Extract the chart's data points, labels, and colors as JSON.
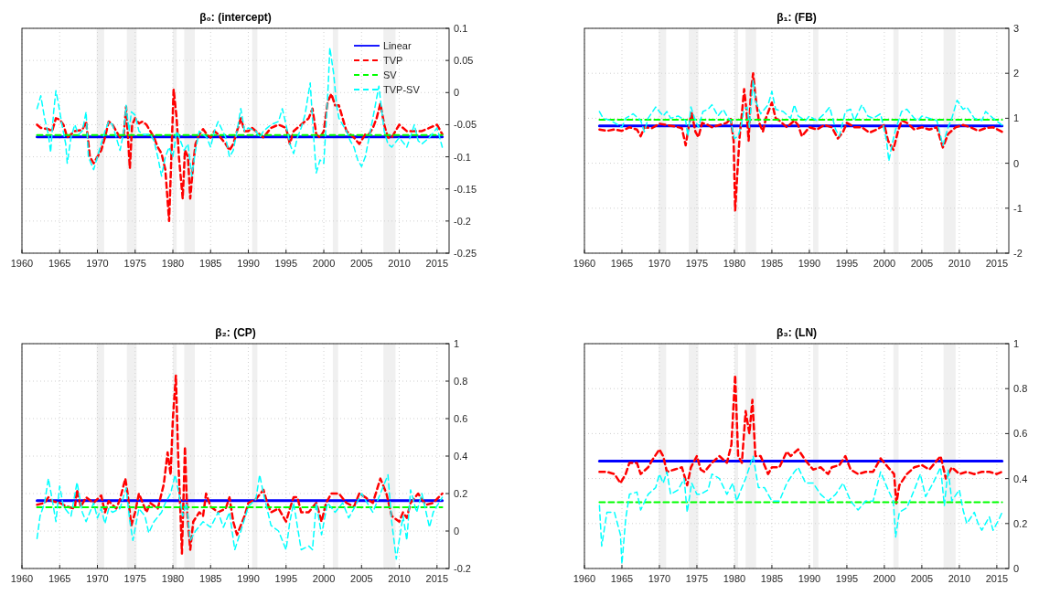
{
  "chart_data": [
    {
      "type": "line",
      "title": "β₀: (intercept)",
      "xlim": [
        1960,
        2016.6
      ],
      "xticks": [
        1960,
        1965,
        1970,
        1975,
        1980,
        1985,
        1990,
        1995,
        2000,
        2005,
        2010,
        2015
      ],
      "ylim": [
        -0.25,
        0.1
      ],
      "yticks": [
        -0.25,
        -0.2,
        -0.15,
        -0.1,
        -0.05,
        0,
        0.05,
        0.1
      ],
      "grid": true,
      "legend": "top right",
      "bands": [
        {
          "axis": "x",
          "from": 1969.9,
          "to": 1970.9,
          "color": "#f0f0f0"
        },
        {
          "axis": "x",
          "from": 1973.9,
          "to": 1975.2,
          "color": "#f0f0f0"
        },
        {
          "axis": "x",
          "from": 1980,
          "to": 1980.5,
          "color": "#f0f0f0"
        },
        {
          "axis": "x",
          "from": 1981.5,
          "to": 1982.9,
          "color": "#f0f0f0"
        },
        {
          "axis": "x",
          "from": 1990.5,
          "to": 1991.2,
          "color": "#f0f0f0"
        },
        {
          "axis": "x",
          "from": 2001.2,
          "to": 2001.9,
          "color": "#f0f0f0"
        },
        {
          "axis": "x",
          "from": 2007.9,
          "to": 2009.5,
          "color": "#f0f0f0"
        }
      ],
      "series": [
        {
          "name": "Linear",
          "color": "#0000ff",
          "line_style": "solid",
          "x": [
            1962,
            2015.7
          ],
          "values": [
            -0.069,
            -0.069
          ]
        },
        {
          "name": "TVP",
          "color": "#ff0000",
          "line_style": "dashed",
          "x": [
            1962,
            1962.5,
            1963.5,
            1964,
            1964.5,
            1965,
            1965.5,
            1966,
            1966.5,
            1967,
            1968,
            1968.5,
            1969,
            1969.5,
            1970.5,
            1971,
            1971.5,
            1972,
            1972.5,
            1973,
            1973.5,
            1973.8,
            1974,
            1974.3,
            1974.6,
            1975,
            1975.5,
            1976,
            1976.5,
            1977,
            1977.5,
            1978,
            1978.5,
            1979,
            1979.5,
            1979.8,
            1980.1,
            1980.5,
            1980.8,
            1981.3,
            1981.6,
            1982,
            1982.3,
            1982.7,
            1983,
            1983.5,
            1984,
            1984.5,
            1985,
            1985.5,
            1986,
            1987,
            1987.5,
            1988,
            1988.5,
            1989,
            1989.5,
            1990,
            1990.5,
            1991,
            1992,
            1993,
            1994,
            1995,
            1995.5,
            1996,
            1997,
            1998,
            1998.5,
            1999,
            1999.5,
            2000,
            2000.5,
            2001,
            2001.5,
            2002,
            2002.5,
            2003,
            2004,
            2004.7,
            2005.5,
            2006,
            2006.5,
            2007,
            2007.5,
            2008,
            2008.5,
            2009,
            2010,
            2011,
            2012,
            2013,
            2014,
            2015,
            2015.7
          ],
          "values": [
            -0.05,
            -0.055,
            -0.057,
            -0.06,
            -0.04,
            -0.042,
            -0.05,
            -0.07,
            -0.065,
            -0.06,
            -0.058,
            -0.045,
            -0.1,
            -0.11,
            -0.09,
            -0.07,
            -0.045,
            -0.05,
            -0.06,
            -0.07,
            -0.065,
            -0.022,
            -0.06,
            -0.118,
            -0.05,
            -0.04,
            -0.048,
            -0.045,
            -0.05,
            -0.06,
            -0.07,
            -0.085,
            -0.095,
            -0.12,
            -0.2,
            -0.1,
            0.005,
            -0.04,
            -0.1,
            -0.165,
            -0.09,
            -0.1,
            -0.165,
            -0.11,
            -0.08,
            -0.065,
            -0.057,
            -0.065,
            -0.07,
            -0.06,
            -0.065,
            -0.08,
            -0.09,
            -0.08,
            -0.06,
            -0.04,
            -0.06,
            -0.06,
            -0.055,
            -0.06,
            -0.07,
            -0.055,
            -0.05,
            -0.055,
            -0.08,
            -0.06,
            -0.05,
            -0.04,
            -0.025,
            -0.065,
            -0.07,
            -0.06,
            -0.015,
            -0.002,
            -0.02,
            -0.02,
            -0.04,
            -0.06,
            -0.07,
            -0.08,
            -0.065,
            -0.065,
            -0.055,
            -0.04,
            -0.017,
            -0.05,
            -0.07,
            -0.07,
            -0.05,
            -0.06,
            -0.06,
            -0.06,
            -0.055,
            -0.05,
            -0.065
          ]
        },
        {
          "name": "SV",
          "color": "#00ff00",
          "line_style": "dashed",
          "x": [
            1962,
            2015.7
          ],
          "values": [
            -0.066,
            -0.066
          ]
        },
        {
          "name": "TVP-SV",
          "color": "#00ffff",
          "line_style": "dashed",
          "x": [
            1962,
            1962.5,
            1963,
            1963.5,
            1963.8,
            1964.2,
            1964.5,
            1964.8,
            1965.3,
            1965.8,
            1966,
            1966.5,
            1967,
            1967.5,
            1968,
            1968.5,
            1968.8,
            1969.5,
            1970,
            1970.5,
            1971,
            1971.5,
            1972,
            1973,
            1973.5,
            1973.8,
            1974.2,
            1974.5,
            1975,
            1975.5,
            1976,
            1977,
            1977.5,
            1978,
            1978.5,
            1979,
            1979.5,
            1980,
            1980.5,
            1981,
            1981.5,
            1982,
            1982.5,
            1983,
            1983.5,
            1984,
            1984.5,
            1985,
            1985.5,
            1986,
            1987,
            1987.5,
            1988,
            1988.5,
            1989,
            1989.5,
            1990,
            1991,
            1991.5,
            1992,
            1993,
            1994,
            1994.5,
            1995,
            1995.5,
            1996,
            1996.5,
            1997,
            1997.5,
            1998.2,
            1998.6,
            1999,
            1999.5,
            2000,
            2000.3,
            2000.6,
            2000.8,
            2001.3,
            2001.7,
            2002,
            2003,
            2003.5,
            2004,
            2004.5,
            2005,
            2005.5,
            2006,
            2006.5,
            2007.3,
            2007.6,
            2008,
            2008.5,
            2009,
            2010,
            2011,
            2012,
            2012.5,
            2013,
            2014,
            2015,
            2015.7
          ],
          "values": [
            -0.025,
            -0.005,
            -0.04,
            -0.065,
            -0.093,
            -0.03,
            0.003,
            -0.015,
            -0.05,
            -0.08,
            -0.11,
            -0.07,
            -0.05,
            -0.065,
            -0.06,
            -0.03,
            -0.1,
            -0.12,
            -0.1,
            -0.08,
            -0.06,
            -0.045,
            -0.05,
            -0.09,
            -0.06,
            -0.02,
            -0.06,
            -0.03,
            -0.035,
            -0.06,
            -0.065,
            -0.065,
            -0.075,
            -0.1,
            -0.13,
            -0.1,
            -0.085,
            -0.1,
            -0.06,
            -0.075,
            -0.09,
            -0.08,
            -0.13,
            -0.09,
            -0.06,
            -0.065,
            -0.07,
            -0.085,
            -0.06,
            -0.045,
            -0.07,
            -0.1,
            -0.09,
            -0.06,
            -0.025,
            -0.06,
            -0.055,
            -0.06,
            -0.07,
            -0.06,
            -0.05,
            -0.045,
            -0.025,
            -0.05,
            -0.08,
            -0.095,
            -0.07,
            -0.055,
            -0.035,
            0.015,
            -0.06,
            -0.125,
            -0.105,
            -0.11,
            -0.05,
            0.015,
            0.07,
            0.03,
            -0.02,
            -0.04,
            -0.06,
            -0.075,
            -0.085,
            -0.105,
            -0.115,
            -0.1,
            -0.07,
            -0.04,
            0.01,
            -0.02,
            -0.06,
            -0.08,
            -0.085,
            -0.07,
            -0.085,
            -0.05,
            -0.075,
            -0.08,
            -0.07,
            -0.055,
            -0.085
          ]
        }
      ]
    },
    {
      "type": "line",
      "title": "β₁: (FB)",
      "xlim": [
        1960,
        2016.6
      ],
      "xticks": [
        1960,
        1965,
        1970,
        1975,
        1980,
        1985,
        1990,
        1995,
        2000,
        2005,
        2010,
        2015
      ],
      "ylim": [
        -2,
        3
      ],
      "yticks": [
        -2,
        -1,
        0,
        1,
        2,
        3
      ],
      "grid": true,
      "bands": [
        {
          "axis": "x",
          "from": 1969.9,
          "to": 1970.9,
          "color": "#f0f0f0"
        },
        {
          "axis": "x",
          "from": 1973.9,
          "to": 1975.2,
          "color": "#f0f0f0"
        },
        {
          "axis": "x",
          "from": 1980,
          "to": 1980.5,
          "color": "#f0f0f0"
        },
        {
          "axis": "x",
          "from": 1981.5,
          "to": 1982.9,
          "color": "#f0f0f0"
        },
        {
          "axis": "x",
          "from": 1990.5,
          "to": 1991.2,
          "color": "#f0f0f0"
        },
        {
          "axis": "x",
          "from": 2001.2,
          "to": 2001.9,
          "color": "#f0f0f0"
        },
        {
          "axis": "x",
          "from": 2007.9,
          "to": 2009.5,
          "color": "#f0f0f0"
        }
      ],
      "series": [
        {
          "color": "#0000ff",
          "line_style": "solid",
          "x": [
            1962,
            2015.7
          ],
          "values": [
            0.83,
            0.83
          ]
        },
        {
          "color": "#ff0000",
          "line_style": "dashed",
          "x": [
            1962,
            1963,
            1964,
            1965,
            1966,
            1967,
            1967.5,
            1968,
            1969,
            1970,
            1971,
            1972,
            1973,
            1973.5,
            1974,
            1974.3,
            1974.8,
            1975.2,
            1975.7,
            1976.5,
            1977,
            1978,
            1979,
            1979.5,
            1979.9,
            1980.1,
            1980.4,
            1980.7,
            1981,
            1981.3,
            1981.6,
            1981.9,
            1982.2,
            1982.5,
            1982.8,
            1983.3,
            1983.8,
            1984.2,
            1985,
            1985.5,
            1986,
            1987,
            1988,
            1988.5,
            1989,
            1990,
            1991,
            1992,
            1993,
            1993.8,
            1994.5,
            1995,
            1996,
            1997,
            1998,
            1999,
            2000,
            2000.5,
            2001.2,
            2001.8,
            2002.3,
            2003,
            2004,
            2005,
            2006,
            2007,
            2007.8,
            2008.5,
            2009.5,
            2010.5,
            2011.5,
            2012.5,
            2013.5,
            2014.5,
            2015.7
          ],
          "values": [
            0.75,
            0.72,
            0.75,
            0.72,
            0.8,
            0.75,
            0.6,
            0.8,
            0.78,
            0.88,
            0.85,
            0.82,
            0.78,
            0.4,
            0.9,
            1.12,
            0.7,
            0.58,
            0.9,
            0.85,
            0.8,
            0.85,
            0.9,
            1.0,
            0.5,
            -1.05,
            -0.2,
            0.6,
            1.1,
            1.65,
            1.2,
            0.5,
            1.6,
            2.0,
            1.5,
            0.9,
            0.7,
            1.0,
            1.35,
            1.0,
            0.95,
            0.8,
            0.95,
            0.85,
            0.6,
            0.8,
            0.75,
            0.85,
            0.8,
            0.55,
            0.7,
            0.9,
            0.8,
            0.8,
            0.68,
            0.75,
            0.85,
            0.5,
            0.3,
            0.7,
            0.95,
            0.9,
            0.75,
            0.8,
            0.75,
            0.8,
            0.35,
            0.65,
            0.8,
            0.85,
            0.8,
            0.72,
            0.78,
            0.8,
            0.7
          ]
        },
        {
          "color": "#00ff00",
          "line_style": "dashed",
          "x": [
            1962,
            2015.7
          ],
          "values": [
            0.97,
            0.97
          ]
        },
        {
          "color": "#00ffff",
          "line_style": "dashed",
          "x": [
            1962,
            1962.5,
            1963.5,
            1964.5,
            1965,
            1965.5,
            1966.5,
            1967.5,
            1968,
            1968.5,
            1969.5,
            1970.5,
            1971,
            1971.5,
            1972.5,
            1973.5,
            1973.8,
            1974.2,
            1974.7,
            1975.2,
            1975.8,
            1976.5,
            1977,
            1977.8,
            1978.5,
            1979,
            1979.5,
            1980,
            1980.5,
            1981,
            1981.3,
            1981.7,
            1982,
            1982.5,
            1982.8,
            1983.5,
            1984.5,
            1985,
            1985.5,
            1986.5,
            1987.5,
            1988,
            1988.5,
            1989.5,
            1990,
            1991,
            1992,
            1992.7,
            1993.5,
            1994,
            1994.8,
            1995.5,
            1996,
            1997,
            1997.8,
            1998.5,
            1999.5,
            2000.3,
            2000.6,
            2001,
            2001.5,
            2002.3,
            2003,
            2004,
            2004.5,
            2005,
            2006,
            2007,
            2007.8,
            2008.5,
            2009,
            2009.7,
            2010.5,
            2011,
            2012,
            2013,
            2013.5,
            2014.5,
            2015.7
          ],
          "values": [
            1.15,
            1.0,
            0.95,
            0.85,
            0.8,
            1.0,
            1.1,
            0.95,
            0.7,
            1.0,
            1.25,
            1.05,
            1.15,
            1.0,
            1.05,
            0.95,
            0.6,
            1.25,
            1.0,
            0.8,
            1.15,
            1.2,
            1.3,
            1.05,
            1.2,
            1.05,
            0.95,
            0.55,
            0.6,
            0.9,
            1.2,
            1.25,
            0.8,
            1.85,
            1.4,
            1.1,
            1.3,
            1.6,
            1.2,
            1.15,
            1.0,
            1.3,
            1.05,
            0.95,
            1.05,
            0.95,
            1.1,
            1.25,
            0.75,
            0.6,
            1.15,
            1.2,
            0.95,
            1.3,
            1.05,
            1.0,
            1.1,
            0.5,
            0.05,
            0.4,
            0.75,
            1.15,
            1.2,
            1.0,
            0.95,
            1.05,
            1.0,
            0.95,
            0.4,
            0.8,
            1.0,
            1.4,
            1.2,
            1.25,
            1.0,
            0.95,
            1.15,
            1.0,
            0.85
          ]
        }
      ]
    },
    {
      "type": "line",
      "title": "β₂: (CP)",
      "xlim": [
        1960,
        2016.6
      ],
      "xticks": [
        1960,
        1965,
        1970,
        1975,
        1980,
        1985,
        1990,
        1995,
        2000,
        2005,
        2010,
        2015
      ],
      "ylim": [
        -0.2,
        1
      ],
      "yticks": [
        -0.2,
        0,
        0.2,
        0.4,
        0.6,
        0.8,
        1
      ],
      "grid": true,
      "bands": [
        {
          "axis": "x",
          "from": 1969.9,
          "to": 1970.9,
          "color": "#f0f0f0"
        },
        {
          "axis": "x",
          "from": 1973.9,
          "to": 1975.2,
          "color": "#f0f0f0"
        },
        {
          "axis": "x",
          "from": 1980,
          "to": 1980.5,
          "color": "#f0f0f0"
        },
        {
          "axis": "x",
          "from": 1981.5,
          "to": 1982.9,
          "color": "#f0f0f0"
        },
        {
          "axis": "x",
          "from": 1990.5,
          "to": 1991.2,
          "color": "#f0f0f0"
        },
        {
          "axis": "x",
          "from": 2001.2,
          "to": 2001.9,
          "color": "#f0f0f0"
        },
        {
          "axis": "x",
          "from": 2007.9,
          "to": 2009.5,
          "color": "#f0f0f0"
        }
      ],
      "series": [
        {
          "color": "#0000ff",
          "line_style": "solid",
          "x": [
            1962,
            2015.7
          ],
          "values": [
            0.162,
            0.162
          ]
        },
        {
          "color": "#ff0000",
          "line_style": "dashed",
          "x": [
            1962,
            1963,
            1963.5,
            1964,
            1965,
            1966,
            1967,
            1967.3,
            1967.8,
            1968.5,
            1969.5,
            1970.5,
            1971,
            1971.5,
            1972.5,
            1973,
            1973.7,
            1974,
            1974.5,
            1975,
            1975.5,
            1976.5,
            1977,
            1978,
            1978.8,
            1979.3,
            1979.7,
            1980,
            1980.4,
            1980.7,
            1981,
            1981.2,
            1981.6,
            1981.9,
            1982.3,
            1982.7,
            1983.5,
            1984,
            1984.4,
            1985,
            1986,
            1987,
            1987.5,
            1988,
            1988.5,
            1989.5,
            1990,
            1991,
            1992,
            1992.5,
            1993,
            1994,
            1995,
            1995.5,
            1996,
            1996.5,
            1997,
            1998,
            1999,
            1999.7,
            2000.3,
            2001,
            2002,
            2003,
            2004,
            2004.7,
            2005.5,
            2006.5,
            2007.5,
            2008.3,
            2009,
            2010,
            2010.5,
            2011,
            2011.5,
            2012.5,
            2013.5,
            2014.5,
            2015.7
          ],
          "values": [
            0.14,
            0.15,
            0.18,
            0.16,
            0.15,
            0.13,
            0.12,
            0.22,
            0.13,
            0.18,
            0.15,
            0.19,
            0.1,
            0.16,
            0.12,
            0.17,
            0.28,
            0.2,
            0.03,
            0.1,
            0.2,
            0.1,
            0.15,
            0.12,
            0.25,
            0.42,
            0.3,
            0.6,
            0.83,
            0.4,
            0.1,
            -0.12,
            0.45,
            0.1,
            -0.1,
            0.05,
            0.1,
            0.08,
            0.2,
            0.13,
            0.1,
            0.12,
            0.18,
            0.05,
            -0.02,
            0.08,
            0.15,
            0.17,
            0.22,
            0.15,
            0.1,
            0.12,
            0.05,
            0.12,
            0.18,
            0.18,
            0.1,
            0.1,
            0.15,
            0.05,
            0.15,
            0.2,
            0.2,
            0.15,
            0.13,
            0.2,
            0.18,
            0.15,
            0.28,
            0.2,
            0.08,
            0.05,
            0.1,
            0.07,
            0.15,
            0.2,
            0.14,
            0.15,
            0.2
          ]
        },
        {
          "color": "#00ff00",
          "line_style": "dashed",
          "x": [
            1962,
            2015.7
          ],
          "values": [
            0.127,
            0.127
          ]
        },
        {
          "color": "#00ffff",
          "line_style": "dashed",
          "x": [
            1962,
            1962.4,
            1963,
            1963.5,
            1964,
            1964.5,
            1965,
            1965.5,
            1966.5,
            1967.3,
            1968,
            1968.5,
            1969.5,
            1970,
            1970.5,
            1971,
            1971.5,
            1972,
            1973,
            1973.8,
            1974.3,
            1974.7,
            1975.5,
            1976.3,
            1976.8,
            1977.5,
            1978.5,
            1979,
            1979.7,
            1980.3,
            1980.8,
            1981.3,
            1981.8,
            1982.3,
            1983,
            1984,
            1985,
            1986,
            1986.7,
            1987.5,
            1988.2,
            1989,
            1990,
            1991,
            1991.5,
            1992,
            1993,
            1994,
            1995,
            1995.5,
            1996,
            1997,
            1998,
            1998.5,
            1999,
            1999.7,
            2000.5,
            2001.5,
            2002.5,
            2003.3,
            2004,
            2005,
            2006.5,
            2007.5,
            2008.5,
            2009,
            2009.6,
            2010.5,
            2011,
            2011.5,
            2012.3,
            2013,
            2014,
            2014.5,
            2015.7
          ],
          "values": [
            -0.04,
            0.08,
            0.15,
            0.28,
            0.17,
            0.05,
            0.24,
            0.13,
            0.08,
            0.26,
            0.1,
            0.05,
            0.15,
            0.07,
            0.12,
            0.04,
            0.12,
            0.1,
            0.12,
            0.23,
            0.05,
            -0.05,
            0.12,
            0.08,
            -0.01,
            0.05,
            0.1,
            0.15,
            0.2,
            0.3,
            0.2,
            0.08,
            0.15,
            -0.05,
            0.0,
            0.05,
            0.02,
            0.1,
            0.02,
            0.1,
            -0.1,
            0.0,
            0.13,
            0.17,
            0.3,
            0.2,
            0.03,
            0.0,
            -0.1,
            0.05,
            0.15,
            -0.1,
            -0.08,
            -0.1,
            0.15,
            -0.02,
            0.15,
            0.1,
            0.15,
            0.07,
            0.12,
            0.2,
            0.1,
            0.2,
            0.3,
            0.05,
            -0.15,
            0.08,
            -0.05,
            0.22,
            0.1,
            0.2,
            0.02,
            0.1,
            0.18
          ]
        }
      ]
    },
    {
      "type": "line",
      "title": "β₃: (LN)",
      "xlim": [
        1960,
        2016.6
      ],
      "xticks": [
        1960,
        1965,
        1970,
        1975,
        1980,
        1985,
        1990,
        1995,
        2000,
        2005,
        2010,
        2015
      ],
      "ylim": [
        0,
        1
      ],
      "yticks": [
        0,
        0.2,
        0.4,
        0.6,
        0.8,
        1
      ],
      "grid": true,
      "bands": [
        {
          "axis": "x",
          "from": 1969.9,
          "to": 1970.9,
          "color": "#f0f0f0"
        },
        {
          "axis": "x",
          "from": 1973.9,
          "to": 1975.2,
          "color": "#f0f0f0"
        },
        {
          "axis": "x",
          "from": 1980,
          "to": 1980.5,
          "color": "#f0f0f0"
        },
        {
          "axis": "x",
          "from": 1981.5,
          "to": 1982.9,
          "color": "#f0f0f0"
        },
        {
          "axis": "x",
          "from": 1990.5,
          "to": 1991.2,
          "color": "#f0f0f0"
        },
        {
          "axis": "x",
          "from": 2001.2,
          "to": 2001.9,
          "color": "#f0f0f0"
        },
        {
          "axis": "x",
          "from": 2007.9,
          "to": 2009.5,
          "color": "#f0f0f0"
        }
      ],
      "series": [
        {
          "color": "#0000ff",
          "line_style": "solid",
          "x": [
            1962,
            2015.7
          ],
          "values": [
            0.478,
            0.478
          ]
        },
        {
          "color": "#ff0000",
          "line_style": "dashed",
          "x": [
            1962,
            1963,
            1964,
            1964.8,
            1965.5,
            1966,
            1967,
            1967.5,
            1968.5,
            1969,
            1970,
            1970.5,
            1971,
            1972,
            1973,
            1973.7,
            1974.2,
            1975,
            1975.5,
            1976,
            1977,
            1978,
            1979,
            1979.6,
            1980.1,
            1980.5,
            1981,
            1981.5,
            1982,
            1982.4,
            1982.8,
            1983.5,
            1984.5,
            1985,
            1986,
            1987,
            1987.5,
            1988.5,
            1989.5,
            1990.5,
            1991.5,
            1992.5,
            1993,
            1994,
            1994.8,
            1995.5,
            1996.5,
            1997.5,
            1998.5,
            1999.5,
            2000.5,
            2001.3,
            2001.6,
            2002,
            2003,
            2004,
            2005,
            2006,
            2007.5,
            2008.2,
            2009,
            2010,
            2011,
            2012,
            2013,
            2014,
            2015,
            2015.7
          ],
          "values": [
            0.43,
            0.43,
            0.42,
            0.38,
            0.42,
            0.47,
            0.47,
            0.42,
            0.45,
            0.48,
            0.53,
            0.5,
            0.43,
            0.44,
            0.45,
            0.37,
            0.45,
            0.5,
            0.44,
            0.43,
            0.47,
            0.5,
            0.47,
            0.55,
            0.86,
            0.5,
            0.47,
            0.7,
            0.6,
            0.75,
            0.5,
            0.5,
            0.42,
            0.45,
            0.45,
            0.52,
            0.5,
            0.53,
            0.48,
            0.44,
            0.45,
            0.42,
            0.45,
            0.46,
            0.5,
            0.44,
            0.42,
            0.43,
            0.43,
            0.49,
            0.45,
            0.42,
            0.29,
            0.37,
            0.42,
            0.45,
            0.46,
            0.44,
            0.5,
            0.4,
            0.45,
            0.42,
            0.43,
            0.42,
            0.43,
            0.43,
            0.42,
            0.43
          ]
        },
        {
          "color": "#00ff00",
          "line_style": "dashed",
          "x": [
            1962,
            2015.7
          ],
          "values": [
            0.295,
            0.295
          ]
        },
        {
          "color": "#00ffff",
          "line_style": "dashed",
          "x": [
            1962,
            1962.3,
            1963,
            1964,
            1964.8,
            1965,
            1965.5,
            1966,
            1967,
            1967.5,
            1968.5,
            1969.5,
            1970,
            1970.5,
            1971,
            1971.5,
            1972.5,
            1973.3,
            1973.7,
            1974.3,
            1975,
            1975.5,
            1976.5,
            1977,
            1978,
            1979,
            1979.8,
            1980.3,
            1981,
            1981.5,
            1982.5,
            1983.2,
            1984,
            1985,
            1986,
            1987,
            1988,
            1988.5,
            1989.5,
            1990.5,
            1991.5,
            1992.5,
            1993.5,
            1994.5,
            1995.5,
            1996.5,
            1997.5,
            1998.5,
            1999.5,
            2000.5,
            2001.2,
            2001.5,
            2002,
            2003,
            2004,
            2004.8,
            2005.5,
            2006.5,
            2007.5,
            2008,
            2008.5,
            2009,
            2010,
            2010.5,
            2011,
            2012,
            2012.5,
            2013,
            2014,
            2014.5,
            2015.3,
            2015.7
          ],
          "values": [
            0.28,
            0.1,
            0.25,
            0.25,
            0.15,
            0.02,
            0.22,
            0.33,
            0.34,
            0.26,
            0.33,
            0.36,
            0.42,
            0.38,
            0.43,
            0.33,
            0.35,
            0.4,
            0.25,
            0.38,
            0.33,
            0.33,
            0.35,
            0.42,
            0.4,
            0.33,
            0.38,
            0.3,
            0.36,
            0.4,
            0.5,
            0.36,
            0.36,
            0.3,
            0.3,
            0.38,
            0.43,
            0.45,
            0.38,
            0.38,
            0.33,
            0.3,
            0.33,
            0.38,
            0.3,
            0.26,
            0.3,
            0.3,
            0.43,
            0.35,
            0.3,
            0.14,
            0.25,
            0.27,
            0.35,
            0.42,
            0.32,
            0.38,
            0.45,
            0.28,
            0.44,
            0.3,
            0.35,
            0.26,
            0.2,
            0.25,
            0.2,
            0.17,
            0.23,
            0.17,
            0.22,
            0.25
          ]
        }
      ]
    }
  ]
}
